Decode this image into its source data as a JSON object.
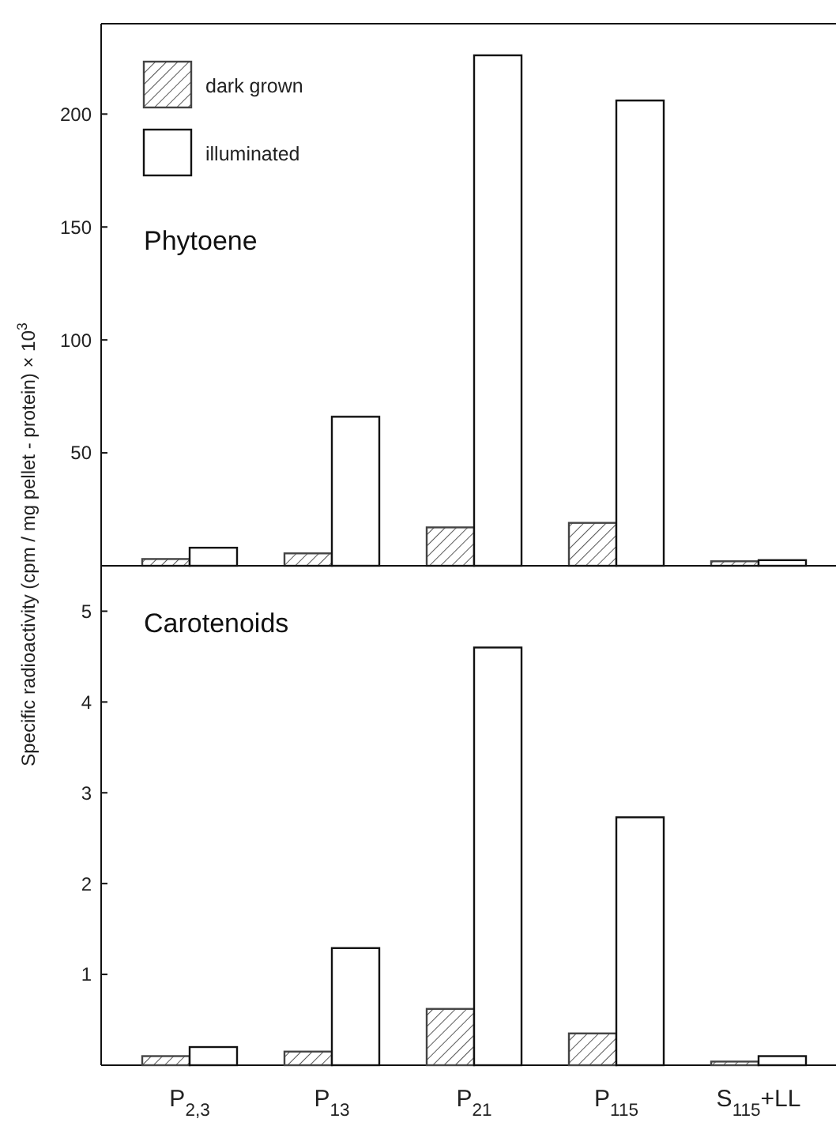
{
  "chart_data": [
    {
      "type": "bar",
      "title": "Phytoene",
      "ylabel": "Specific radioactivity (cpm / mg pellet - protein) × 10$^{3}$",
      "categories": [
        "P$_{2,3}$",
        "P$_{13}$",
        "P$_{21}$",
        "P$_{115}$",
        "S$_{115}$+LL"
      ],
      "series": [
        {
          "name": "dark grown",
          "color": "#444444",
          "values": [
            3,
            5.5,
            17,
            19,
            2
          ]
        },
        {
          "name": "illuminated",
          "color": "#ffffff",
          "values": [
            8,
            66,
            226,
            206,
            2.5
          ]
        }
      ],
      "ylim": [
        0,
        240
      ],
      "yticks": [
        50,
        100,
        150,
        200
      ],
      "legend": "top left",
      "tick_labels": "y"
    },
    {
      "type": "bar",
      "title": "Carotenoids",
      "categories": [
        "P$_{2,3}$",
        "P$_{13}$",
        "P$_{21}$",
        "P$_{115}$",
        "S$_{115}$+LL"
      ],
      "series": [
        {
          "color": "#444444",
          "values": [
            0.1,
            0.15,
            0.62,
            0.35,
            0.04
          ]
        },
        {
          "color": "#ffffff",
          "values": [
            0.2,
            1.29,
            4.6,
            2.73,
            0.1
          ]
        }
      ],
      "ylim": [
        0,
        5.5
      ],
      "yticks": [
        1,
        2,
        3,
        4,
        5
      ]
    }
  ]
}
